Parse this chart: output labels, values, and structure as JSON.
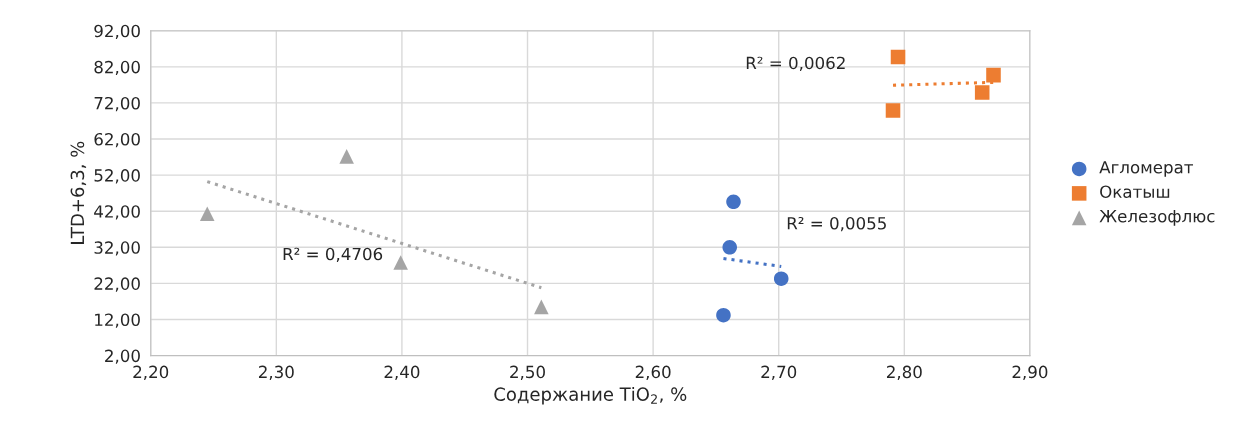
{
  "chart_data": {
    "type": "scatter",
    "xlabel": "Содержание TiO$_{2}$, %",
    "ylabel": "LTD+6,3, %",
    "xlim": [
      2.2,
      2.9
    ],
    "ylim": [
      2,
      92
    ],
    "xticks": [
      {
        "value": 2.2,
        "label": "2,20"
      },
      {
        "value": 2.3,
        "label": "2,30"
      },
      {
        "value": 2.4,
        "label": "2,40"
      },
      {
        "value": 2.5,
        "label": "2,50"
      },
      {
        "value": 2.6,
        "label": "2,60"
      },
      {
        "value": 2.7,
        "label": "2,70"
      },
      {
        "value": 2.8,
        "label": "2,80"
      },
      {
        "value": 2.9,
        "label": "2,90"
      }
    ],
    "yticks": [
      {
        "value": 2,
        "label": "2,00"
      },
      {
        "value": 12,
        "label": "12,00"
      },
      {
        "value": 22,
        "label": "22,00"
      },
      {
        "value": 32,
        "label": "32,00"
      },
      {
        "value": 42,
        "label": "42,00"
      },
      {
        "value": 52,
        "label": "52,00"
      },
      {
        "value": 62,
        "label": "62,00"
      },
      {
        "value": 72,
        "label": "72,00"
      },
      {
        "value": 82,
        "label": "82,00"
      },
      {
        "value": 92,
        "label": "92,00"
      }
    ],
    "grid": true,
    "legend": "right",
    "series": [
      {
        "name": "Агломерат",
        "marker": "circle",
        "color": "#4472c4",
        "x": [
          2.664,
          2.661,
          2.702,
          2.656
        ],
        "values": [
          44.6,
          32.0,
          23.3,
          13.2
        ]
      },
      {
        "name": "Окатыш",
        "marker": "square",
        "color": "#ed7d31",
        "x": [
          2.795,
          2.871,
          2.862,
          2.791
        ],
        "values": [
          84.7,
          79.7,
          74.9,
          69.9
        ]
      },
      {
        "name": "Железофлюс",
        "marker": "triangle",
        "color": "#a5a5a5",
        "x": [
          2.245,
          2.356,
          2.399,
          2.511
        ],
        "values": [
          41.3,
          57.2,
          27.8,
          15.5
        ]
      },
      {
        "type": "line",
        "line_style": "dotted",
        "color": "#4472c4",
        "x": [
          2.656,
          2.702
        ],
        "values": [
          28.9,
          26.7
        ]
      },
      {
        "type": "line",
        "line_style": "dotted",
        "color": "#ed7d31",
        "x": [
          2.791,
          2.871
        ],
        "values": [
          76.9,
          77.7
        ]
      },
      {
        "type": "line",
        "line_style": "dotted",
        "color": "#a5a5a5",
        "x": [
          2.245,
          2.511
        ],
        "values": [
          50.2,
          20.8
        ]
      }
    ],
    "annotations": [
      "R² = 0,0055",
      "R² = 0,0062",
      "R² = 0,4706"
    ]
  }
}
